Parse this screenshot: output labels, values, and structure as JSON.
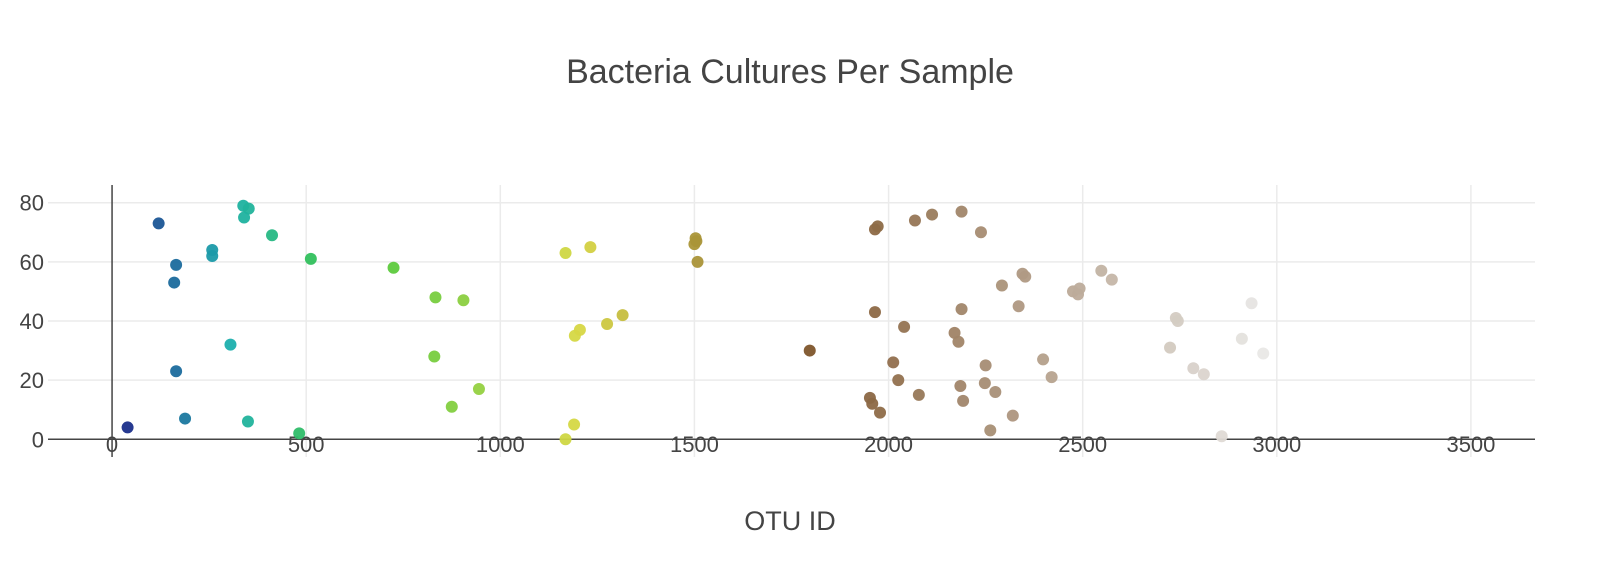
{
  "chart_data": {
    "type": "scatter",
    "title": "Bacteria Cultures Per Sample",
    "xlabel": "OTU ID",
    "ylabel": "",
    "xlim": [
      -165,
      3665
    ],
    "ylim": [
      -6,
      86
    ],
    "x_ticks": [
      0,
      500,
      1000,
      1500,
      2000,
      2500,
      3000,
      3500
    ],
    "y_ticks": [
      0,
      20,
      40,
      60,
      80
    ],
    "grid": true,
    "legend": "none",
    "colorscale": "Earth",
    "color_range": [
      0,
      3000
    ],
    "marker_size": 12,
    "points": [
      [
        40,
        4
      ],
      [
        120,
        73
      ],
      [
        165,
        59
      ],
      [
        160,
        53
      ],
      [
        165,
        23
      ],
      [
        188,
        7
      ],
      [
        258,
        64
      ],
      [
        258,
        62
      ],
      [
        305,
        32
      ],
      [
        338,
        79
      ],
      [
        352,
        78
      ],
      [
        340,
        75
      ],
      [
        350,
        6
      ],
      [
        412,
        69
      ],
      [
        482,
        2
      ],
      [
        512,
        61
      ],
      [
        725,
        58
      ],
      [
        833,
        48
      ],
      [
        830,
        28
      ],
      [
        875,
        11
      ],
      [
        905,
        47
      ],
      [
        945,
        17
      ],
      [
        1168,
        63
      ],
      [
        1168,
        0
      ],
      [
        1190,
        5
      ],
      [
        1192,
        35
      ],
      [
        1205,
        37
      ],
      [
        1232,
        65
      ],
      [
        1275,
        39
      ],
      [
        1315,
        42
      ],
      [
        1500,
        66
      ],
      [
        1505,
        67
      ],
      [
        1503,
        68
      ],
      [
        1508,
        60
      ],
      [
        1797,
        30
      ],
      [
        1952,
        14
      ],
      [
        1958,
        12
      ],
      [
        1965,
        71
      ],
      [
        1972,
        72
      ],
      [
        1965,
        43
      ],
      [
        1978,
        9
      ],
      [
        2012,
        26
      ],
      [
        2025,
        20
      ],
      [
        2040,
        38
      ],
      [
        2068,
        74
      ],
      [
        2078,
        15
      ],
      [
        2112,
        76
      ],
      [
        2170,
        36
      ],
      [
        2180,
        33
      ],
      [
        2185,
        18
      ],
      [
        2188,
        77
      ],
      [
        2188,
        44
      ],
      [
        2192,
        13
      ],
      [
        2238,
        70
      ],
      [
        2250,
        25
      ],
      [
        2248,
        19
      ],
      [
        2262,
        3
      ],
      [
        2275,
        16
      ],
      [
        2292,
        52
      ],
      [
        2320,
        8
      ],
      [
        2335,
        45
      ],
      [
        2345,
        56
      ],
      [
        2352,
        55
      ],
      [
        2398,
        27
      ],
      [
        2420,
        21
      ],
      [
        2475,
        50
      ],
      [
        2488,
        49
      ],
      [
        2492,
        51
      ],
      [
        2548,
        57
      ],
      [
        2575,
        54
      ],
      [
        2725,
        31
      ],
      [
        2740,
        41
      ],
      [
        2745,
        40
      ],
      [
        2785,
        24
      ],
      [
        2812,
        22
      ],
      [
        2858,
        1
      ],
      [
        2910,
        34
      ],
      [
        2935,
        46
      ],
      [
        2965,
        29
      ]
    ]
  }
}
